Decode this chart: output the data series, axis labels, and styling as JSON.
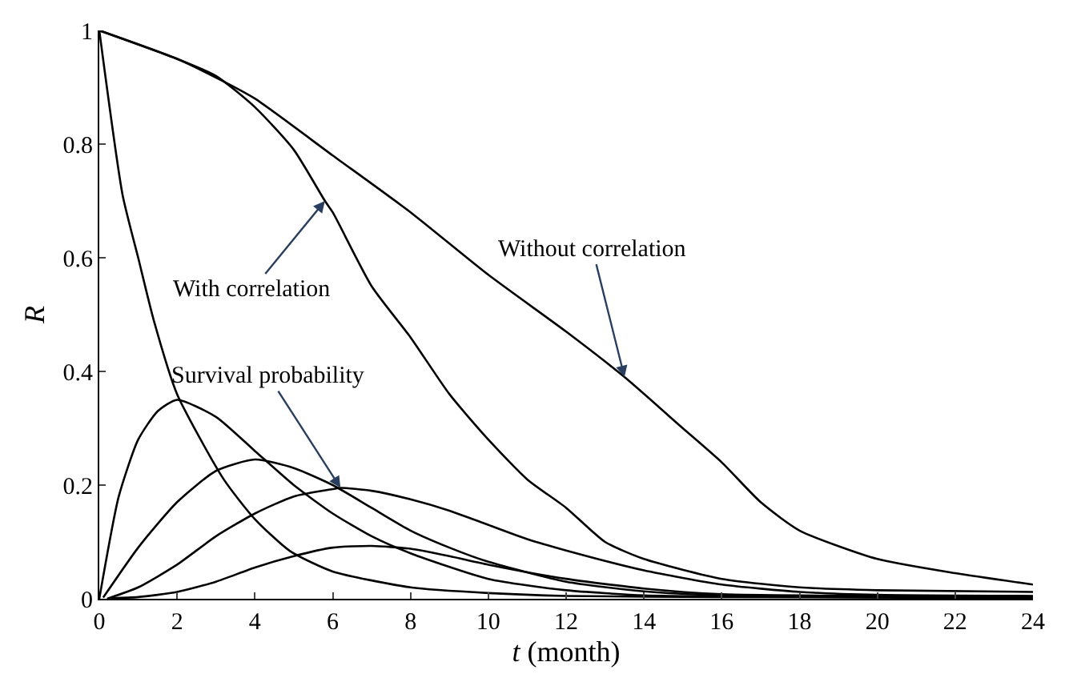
{
  "chart_data": {
    "type": "line",
    "xlabel": "t (month)",
    "ylabel": "R",
    "xlim": [
      0,
      24
    ],
    "xticks": [
      0,
      2,
      4,
      6,
      8,
      10,
      12,
      14,
      16,
      18,
      20,
      22,
      24
    ],
    "ylim": [
      0,
      1
    ],
    "yticks": [
      0,
      0.2,
      0.4,
      0.6,
      0.8,
      1
    ],
    "marker": "none",
    "line_style": "solid",
    "series": [
      {
        "color": "#000000",
        "x": [
          0,
          2,
          3.2,
          4,
          6,
          8,
          10,
          12,
          13.5,
          15,
          16,
          17,
          18,
          20,
          22,
          24
        ],
        "values": [
          1,
          0.95,
          0.91,
          0.88,
          0.78,
          0.68,
          0.57,
          0.47,
          0.39,
          0.3,
          0.24,
          0.17,
          0.12,
          0.07,
          0.045,
          0.025
        ]
      },
      {
        "color": "#000000",
        "x": [
          0,
          2,
          3,
          4,
          5,
          5.8,
          6,
          7,
          8,
          9,
          10,
          11,
          12,
          13,
          14,
          16,
          18,
          20,
          24
        ],
        "values": [
          1,
          0.95,
          0.92,
          0.865,
          0.79,
          0.7,
          0.68,
          0.55,
          0.46,
          0.36,
          0.28,
          0.21,
          0.16,
          0.1,
          0.07,
          0.035,
          0.02,
          0.015,
          0.012
        ]
      },
      {
        "color": "#000000",
        "x": [
          0,
          0.6,
          1,
          1.4,
          2,
          3.2,
          4,
          4.9,
          6,
          8,
          10,
          12,
          16,
          24
        ],
        "values": [
          1,
          0.71,
          0.6,
          0.49,
          0.36,
          0.21,
          0.14,
          0.084,
          0.048,
          0.02,
          0.01,
          0.005,
          0.003,
          0.001
        ]
      },
      {
        "color": "#000000",
        "x": [
          0,
          0.5,
          1,
          1.5,
          2,
          3,
          4,
          5,
          6,
          7,
          8,
          10,
          12,
          14,
          16,
          24
        ],
        "values": [
          0,
          0.18,
          0.28,
          0.33,
          0.35,
          0.32,
          0.26,
          0.2,
          0.15,
          0.11,
          0.08,
          0.035,
          0.015,
          0.006,
          0.004,
          0.002
        ]
      },
      {
        "color": "#000000",
        "x": [
          0.1,
          1,
          2,
          3,
          4,
          5,
          6,
          7,
          8,
          9,
          10,
          12,
          14,
          16,
          24
        ],
        "values": [
          0.002,
          0.09,
          0.17,
          0.225,
          0.245,
          0.23,
          0.2,
          0.16,
          0.12,
          0.09,
          0.065,
          0.03,
          0.013,
          0.006,
          0.003
        ]
      },
      {
        "color": "#000000",
        "x": [
          0.2,
          1,
          2,
          3,
          4,
          5,
          6,
          6.2,
          7,
          8,
          9,
          10,
          11,
          12,
          14,
          16,
          18,
          20,
          24
        ],
        "values": [
          0,
          0.02,
          0.06,
          0.11,
          0.15,
          0.18,
          0.193,
          0.195,
          0.19,
          0.175,
          0.155,
          0.13,
          0.105,
          0.085,
          0.05,
          0.025,
          0.012,
          0.007,
          0.005
        ]
      },
      {
        "color": "#000000",
        "x": [
          0.3,
          1,
          2,
          3,
          4,
          5,
          6,
          7,
          8,
          9,
          10,
          12,
          14,
          16,
          20,
          24
        ],
        "values": [
          0.001,
          0.003,
          0.012,
          0.03,
          0.055,
          0.075,
          0.09,
          0.093,
          0.088,
          0.075,
          0.06,
          0.035,
          0.018,
          0.008,
          0.005,
          0.004
        ]
      }
    ],
    "annotations": [
      {
        "text": "With correlation",
        "x": 5.8,
        "y": 0.7
      },
      {
        "text": "Without correlation",
        "x": 13.5,
        "y": 0.39
      },
      {
        "text": "Survival probability",
        "x": 6.2,
        "y": 0.195
      }
    ]
  }
}
